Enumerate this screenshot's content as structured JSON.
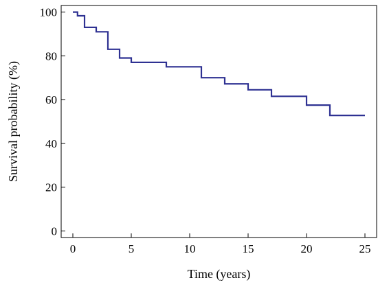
{
  "chart_data": {
    "type": "line",
    "step": true,
    "xlabel": "Time (years)",
    "ylabel": "Survival probability (%)",
    "xlim": [
      -1,
      26
    ],
    "ylim": [
      -3,
      103
    ],
    "x_ticks": [
      0,
      5,
      10,
      15,
      20,
      25
    ],
    "y_ticks": [
      0,
      20,
      40,
      60,
      80,
      100
    ],
    "grid": false,
    "series": [
      {
        "color": "#2e3192",
        "x": [
          0,
          0.4,
          1,
          2,
          3,
          4,
          5,
          8,
          11,
          13,
          15,
          17,
          20,
          22,
          25
        ],
        "y": [
          100,
          98.3,
          93,
          91,
          83,
          79,
          77,
          75,
          70,
          67.2,
          64.5,
          61.5,
          57.5,
          52.8,
          52.8
        ]
      }
    ]
  }
}
